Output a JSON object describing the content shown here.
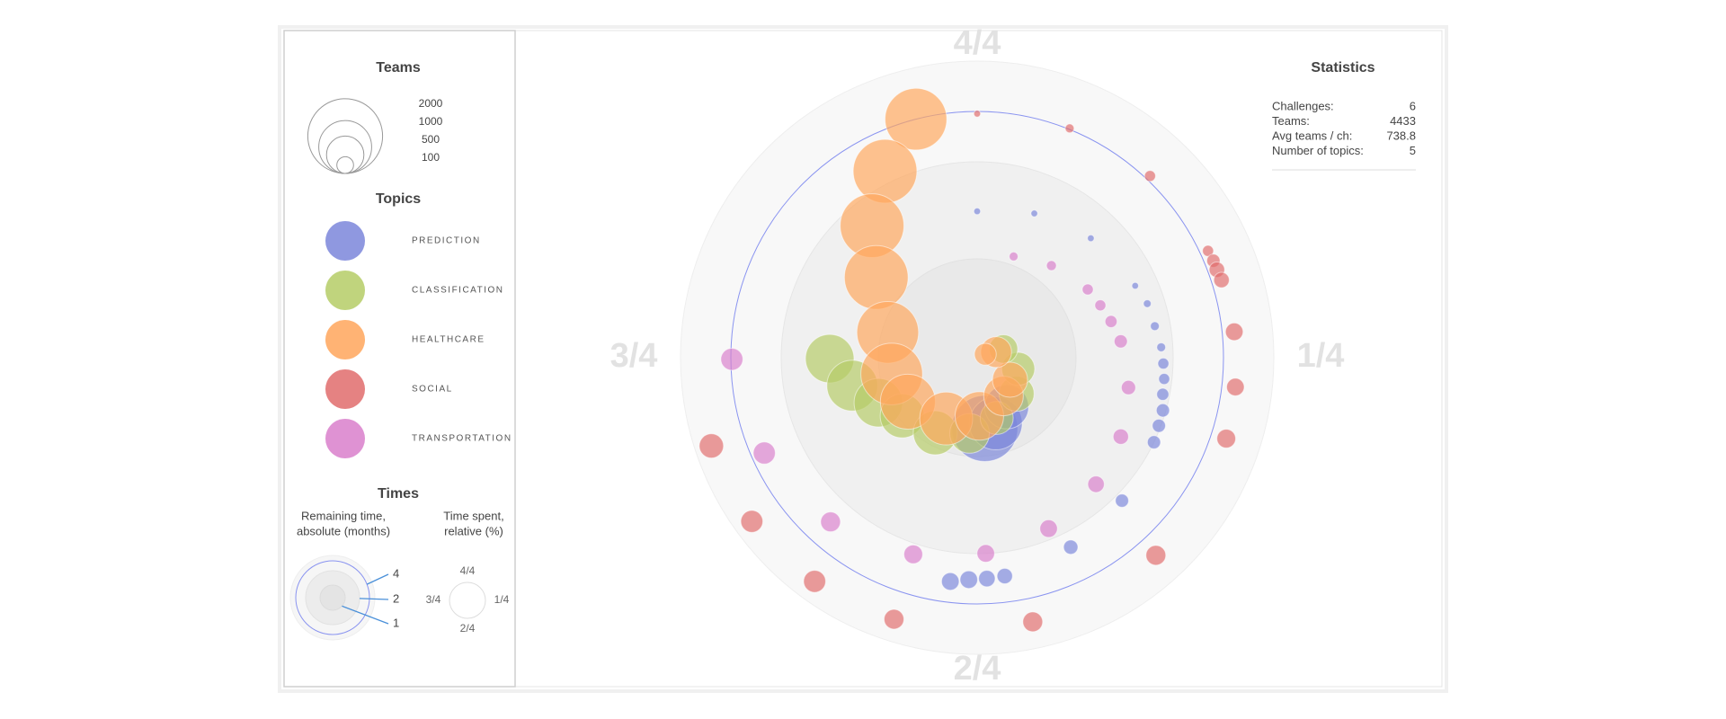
{
  "chart_data": {
    "type": "radial-bubble",
    "size_legend_title": "Teams",
    "size_legend": [
      2000,
      1000,
      500,
      100
    ],
    "topics_title": "Topics",
    "times_title": "Times",
    "remaining_note": [
      "Remaining time,",
      "absolute (months)"
    ],
    "spent_note": [
      "Time spent,",
      "relative (%)"
    ],
    "rlim": [
      0,
      5
    ],
    "rticks": [
      1,
      2,
      4
    ],
    "aticks": [
      {
        "value": 25,
        "label": "1/4"
      },
      {
        "value": 50,
        "label": "2/4"
      },
      {
        "value": 75,
        "label": "3/4"
      },
      {
        "value": 100,
        "label": "4/4"
      }
    ],
    "series": [
      {
        "name": "PREDICTION",
        "color": "#7b86da",
        "spent": [
          48.3,
          45.6,
          41.4,
          0,
          6.0,
          12.1,
          18.2,
          20.1,
          22.2,
          24.1,
          25.5,
          26.8,
          28.1,
          29.4,
          30.7,
          32.1,
          37.4,
          42.7,
          48.0,
          49.3,
          50.6,
          51.9
        ],
        "remaining": [
          0.72,
          0.69,
          0.58,
          1.49,
          1.58,
          1.68,
          1.77,
          1.82,
          1.84,
          1.88,
          1.9,
          1.92,
          1.93,
          1.97,
          1.98,
          2.0,
          2.3,
          2.61,
          2.96,
          3.0,
          3.04,
          3.17
        ],
        "teams": [
          1560,
          1000,
          690,
          16,
          16,
          16,
          16,
          21,
          28,
          28,
          43,
          43,
          52,
          62,
          62,
          62,
          62,
          73,
          85,
          97,
          110,
          110
        ]
      },
      {
        "name": "CLASSIFICATION",
        "color": "#b5cc66",
        "spent": [
          74.9,
          71.5,
          68.2,
          64.5,
          58.1,
          51.6,
          45,
          36.8,
          29.2,
          19.9
        ],
        "remaining": [
          1.5,
          1.3,
          1.1,
          0.96,
          0.87,
          0.77,
          0.64,
          0.54,
          0.43,
          0.28
        ],
        "teams": [
          840,
          920,
          840,
          690,
          690,
          560,
          390,
          440,
          390,
          290
        ]
      },
      {
        "name": "HEALTHCARE",
        "color": "#ffa65c",
        "spent": [
          96,
          92.7,
          89.3,
          85.7,
          79.4,
          72.0,
          66,
          57.5,
          49.4,
          40.4,
          34.4,
          20.4,
          18.6
        ],
        "remaining": [
          4.0,
          2.48,
          1.72,
          1.31,
          0.94,
          0.88,
          0.83,
          0.69,
          0.59,
          0.47,
          0.4,
          0.2,
          0.09
        ],
        "teams": [
          1360,
          1450,
          1450,
          1450,
          1360,
          1360,
          1080,
          1000,
          840,
          560,
          440,
          340,
          170
        ]
      },
      {
        "name": "SOCIAL",
        "color": "#e06c6c",
        "spent": [
          0,
          6.1,
          12.1,
          18.1,
          18.8,
          19.4,
          20.1,
          23.4,
          26.8,
          30.0,
          38.3,
          46.7,
          54.9,
          60,
          65,
          69.9
        ],
        "remaining": [
          3.91,
          4.02,
          4.09,
          4.16,
          4.18,
          4.18,
          4.2,
          4.24,
          4.27,
          4.31,
          4.4,
          4.47,
          4.56,
          4.6,
          4.64,
          4.67
        ],
        "teams": [
          16,
          28,
          43,
          43,
          62,
          85,
          85,
          110,
          110,
          125,
          140,
          140,
          140,
          173,
          173,
          210
        ]
      },
      {
        "name": "TRANSPORTATION",
        "color": "#d97fcb",
        "spent": [
          5.5,
          10.8,
          16.2,
          18.6,
          20.8,
          23.2,
          28.1,
          33.0,
          38.0,
          43.7,
          49.3,
          55.0,
          61.6,
          68.3,
          74.9
        ],
        "remaining": [
          1.09,
          1.2,
          1.32,
          1.36,
          1.41,
          1.47,
          1.57,
          1.67,
          1.77,
          1.89,
          2.0,
          2.43,
          2.96,
          3.48,
          3.96
        ],
        "teams": [
          28,
          35,
          43,
          43,
          52,
          62,
          73,
          85,
          97,
          110,
          110,
          125,
          140,
          173,
          173
        ]
      }
    ],
    "statistics": {
      "title": "Statistics",
      "rows": [
        {
          "label": "Challenges:",
          "value": 6
        },
        {
          "label": "Teams:",
          "value": 4433
        },
        {
          "label": "Avg teams / ch:",
          "value": 738.8
        },
        {
          "label": "Number of topics:",
          "value": 5
        }
      ]
    }
  }
}
